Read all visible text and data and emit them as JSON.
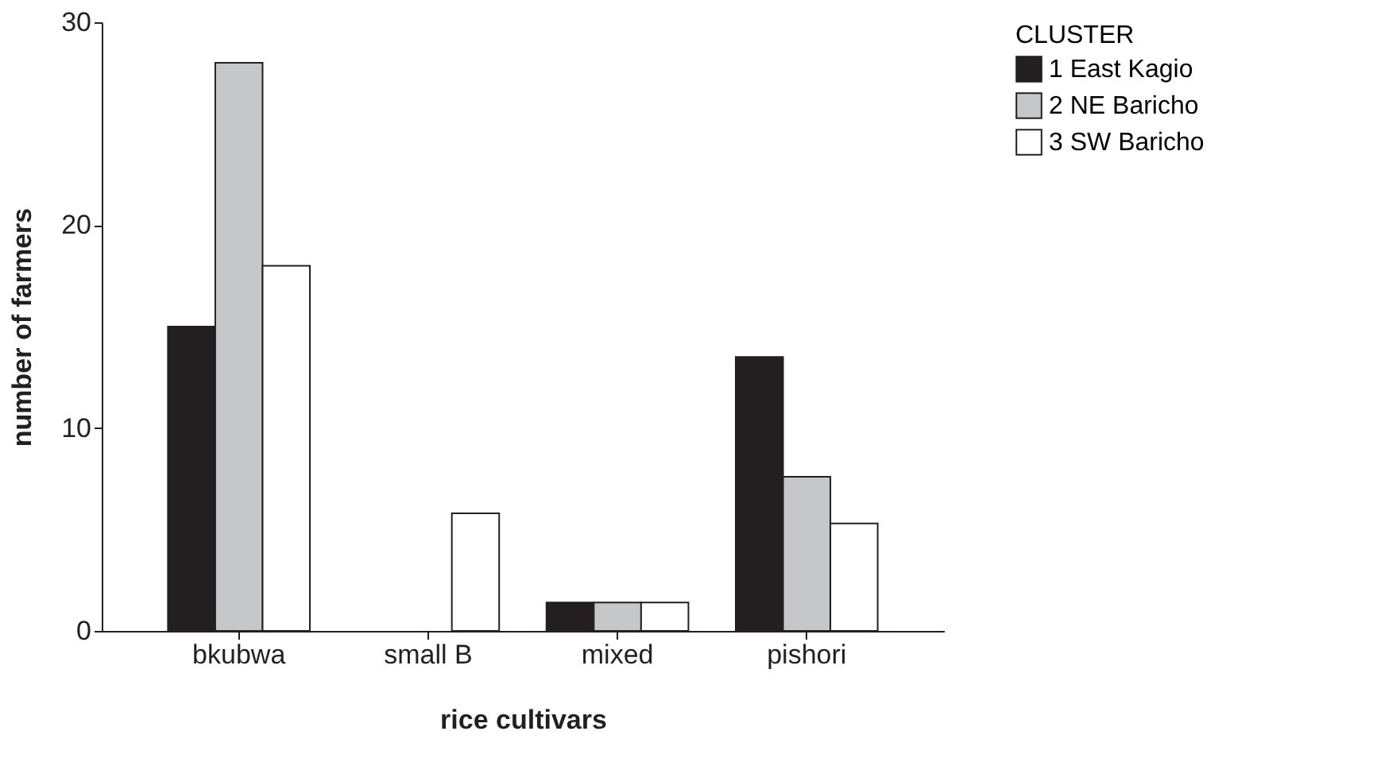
{
  "chart_data": {
    "type": "bar",
    "xlabel": "rice cultivars",
    "ylabel": "number of farmers",
    "legend_title": "CLUSTER",
    "categories": [
      "bkubwa",
      "small B",
      "mixed",
      "pishori"
    ],
    "series": [
      {
        "name": "1  East Kagio",
        "color": "#231f20",
        "values": [
          15,
          0,
          1.4,
          13.5
        ]
      },
      {
        "name": "2  NE Baricho",
        "color": "#c6c7c9",
        "values": [
          28,
          0,
          1.4,
          7.6
        ]
      },
      {
        "name": "3  SW Baricho",
        "color": "#ffffff",
        "values": [
          18,
          5.8,
          1.4,
          5.3
        ]
      }
    ],
    "ylim": [
      0,
      30
    ],
    "yticks": [
      0,
      10,
      20,
      30
    ],
    "grid": false,
    "legend": "top right"
  }
}
